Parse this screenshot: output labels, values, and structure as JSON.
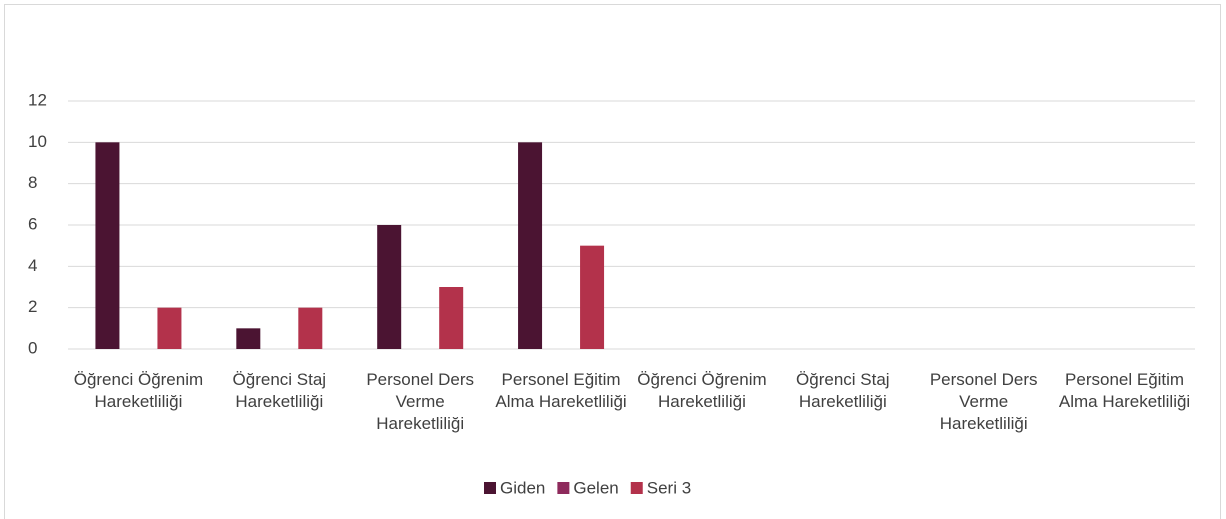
{
  "chart_data": {
    "type": "bar",
    "categories": [
      "Öğrenci Öğrenim Hareketliliği",
      "Öğrenci Staj Hareketliliği",
      "Personel Ders Verme Hareketliliği",
      "Personel Eğitim Alma Hareketliliği",
      "Öğrenci Öğrenim Hareketliliği",
      "Öğrenci Staj Hareketliliği",
      "Personel Ders Verme Hareketliliği",
      "Personel Eğitim Alma Hareketliliği"
    ],
    "series": [
      {
        "name": "Giden",
        "color": "#4b1432",
        "values": [
          10,
          1,
          6,
          10,
          null,
          null,
          null,
          null
        ]
      },
      {
        "name": "Gelen",
        "color": "#8e2a5c",
        "values": [
          null,
          null,
          null,
          null,
          null,
          null,
          null,
          null
        ]
      },
      {
        "name": "Seri 3",
        "color": "#b3324b",
        "values": [
          2,
          2,
          3,
          5,
          null,
          null,
          null,
          null
        ]
      }
    ],
    "ylim": [
      0,
      12
    ],
    "yticks": [
      0,
      2,
      4,
      6,
      8,
      10,
      12
    ],
    "grid": true,
    "legend": "bottom"
  }
}
